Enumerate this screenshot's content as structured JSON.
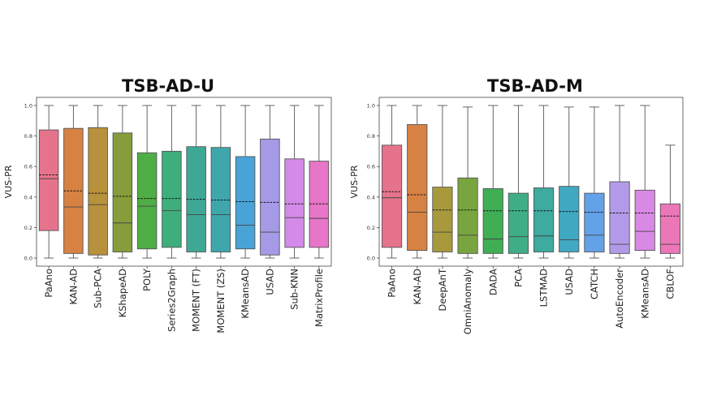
{
  "chart_data": [
    {
      "type": "box",
      "title": "TSB-AD-U",
      "xlabel": "",
      "ylabel": "VUS-PR",
      "ylim": [
        0,
        1.0
      ],
      "yticks": [
        "0.0",
        "0.2",
        "0.4",
        "0.6",
        "0.8",
        "1.0"
      ],
      "grid": false,
      "boxes": [
        {
          "label": "PaAno",
          "min": 0.0,
          "q1": 0.18,
          "median": 0.52,
          "mean": 0.545,
          "q3": 0.84,
          "max": 1.0,
          "color": "#e6738c"
        },
        {
          "label": "KAN-AD",
          "min": 0.0,
          "q1": 0.03,
          "median": 0.335,
          "mean": 0.44,
          "q3": 0.85,
          "max": 1.0,
          "color": "#d78243"
        },
        {
          "label": "Sub-PCA",
          "min": 0.0,
          "q1": 0.02,
          "median": 0.35,
          "mean": 0.425,
          "q3": 0.855,
          "max": 1.0,
          "color": "#b8913c"
        },
        {
          "label": "KShapeAD",
          "min": 0.0,
          "q1": 0.04,
          "median": 0.23,
          "mean": 0.405,
          "q3": 0.82,
          "max": 1.0,
          "color": "#879c3b"
        },
        {
          "label": "POLY",
          "min": 0.0,
          "q1": 0.06,
          "median": 0.34,
          "mean": 0.39,
          "q3": 0.69,
          "max": 1.0,
          "color": "#4fad45"
        },
        {
          "label": "Series2Graph",
          "min": 0.0,
          "q1": 0.07,
          "median": 0.31,
          "mean": 0.39,
          "q3": 0.7,
          "max": 1.0,
          "color": "#3fae7d"
        },
        {
          "label": "MOMENT (FT)",
          "min": 0.0,
          "q1": 0.04,
          "median": 0.285,
          "mean": 0.385,
          "q3": 0.73,
          "max": 1.0,
          "color": "#3ea896"
        },
        {
          "label": "MOMENT (ZS)",
          "min": 0.0,
          "q1": 0.04,
          "median": 0.285,
          "mean": 0.38,
          "q3": 0.725,
          "max": 1.0,
          "color": "#3fa6ac"
        },
        {
          "label": "KMeansAD",
          "min": 0.0,
          "q1": 0.06,
          "median": 0.215,
          "mean": 0.37,
          "q3": 0.665,
          "max": 1.0,
          "color": "#4aa3d6"
        },
        {
          "label": "USAD",
          "min": 0.0,
          "q1": 0.02,
          "median": 0.17,
          "mean": 0.365,
          "q3": 0.78,
          "max": 1.0,
          "color": "#a59ae6"
        },
        {
          "label": "Sub-KNN",
          "min": 0.0,
          "q1": 0.07,
          "median": 0.265,
          "mean": 0.355,
          "q3": 0.65,
          "max": 1.0,
          "color": "#d48ae8"
        },
        {
          "label": "MatrixProfile",
          "min": 0.0,
          "q1": 0.07,
          "median": 0.26,
          "mean": 0.355,
          "q3": 0.635,
          "max": 1.0,
          "color": "#e775c8"
        }
      ]
    },
    {
      "type": "box",
      "title": "TSB-AD-M",
      "xlabel": "",
      "ylabel": "VUS-PR",
      "ylim": [
        0,
        1.0
      ],
      "yticks": [
        "0.0",
        "0.2",
        "0.4",
        "0.6",
        "0.8",
        "1.0"
      ],
      "grid": false,
      "boxes": [
        {
          "label": "PaAno",
          "min": 0.0,
          "q1": 0.07,
          "median": 0.395,
          "mean": 0.435,
          "q3": 0.74,
          "max": 1.0,
          "color": "#e6738c"
        },
        {
          "label": "KAN-AD",
          "min": 0.0,
          "q1": 0.05,
          "median": 0.3,
          "mean": 0.415,
          "q3": 0.875,
          "max": 1.0,
          "color": "#d78243"
        },
        {
          "label": "DeepAnT",
          "min": 0.0,
          "q1": 0.04,
          "median": 0.17,
          "mean": 0.315,
          "q3": 0.465,
          "max": 1.0,
          "color": "#a89a3c"
        },
        {
          "label": "OmniAnomaly",
          "min": 0.0,
          "q1": 0.03,
          "median": 0.15,
          "mean": 0.315,
          "q3": 0.525,
          "max": 0.99,
          "color": "#79a53e"
        },
        {
          "label": "DADA",
          "min": 0.0,
          "q1": 0.03,
          "median": 0.125,
          "mean": 0.31,
          "q3": 0.455,
          "max": 1.0,
          "color": "#3fae55"
        },
        {
          "label": "PCA",
          "min": 0.0,
          "q1": 0.03,
          "median": 0.14,
          "mean": 0.31,
          "q3": 0.425,
          "max": 1.0,
          "color": "#3fae86"
        },
        {
          "label": "LSTMAD",
          "min": 0.0,
          "q1": 0.04,
          "median": 0.145,
          "mean": 0.31,
          "q3": 0.46,
          "max": 1.0,
          "color": "#3eaaa0"
        },
        {
          "label": "USAD",
          "min": 0.0,
          "q1": 0.04,
          "median": 0.12,
          "mean": 0.305,
          "q3": 0.47,
          "max": 0.99,
          "color": "#41a8c1"
        },
        {
          "label": "CATCH",
          "min": 0.0,
          "q1": 0.04,
          "median": 0.15,
          "mean": 0.3,
          "q3": 0.425,
          "max": 0.99,
          "color": "#63a1e8"
        },
        {
          "label": "AutoEncoder",
          "min": 0.0,
          "q1": 0.03,
          "median": 0.09,
          "mean": 0.295,
          "q3": 0.5,
          "max": 1.0,
          "color": "#b39ae8"
        },
        {
          "label": "KMeansAD",
          "min": 0.0,
          "q1": 0.05,
          "median": 0.175,
          "mean": 0.295,
          "q3": 0.445,
          "max": 1.0,
          "color": "#da88e5"
        },
        {
          "label": "CBLOF",
          "min": 0.0,
          "q1": 0.03,
          "median": 0.09,
          "mean": 0.275,
          "q3": 0.355,
          "max": 0.74,
          "color": "#ec77b8"
        }
      ]
    }
  ]
}
